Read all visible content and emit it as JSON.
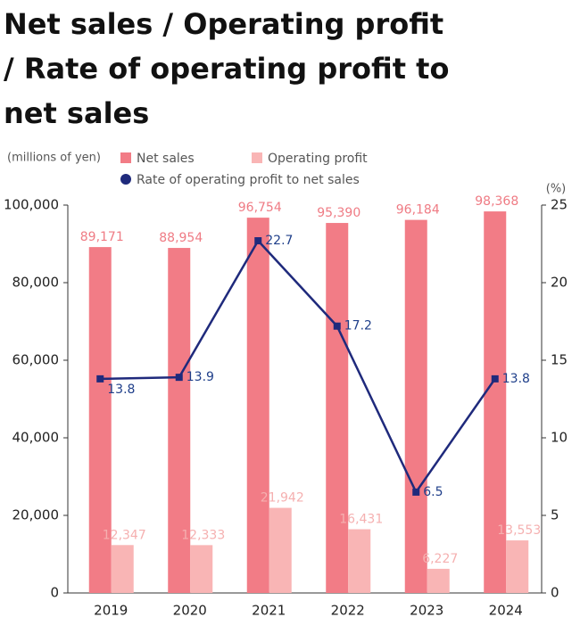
{
  "chart_data": {
    "type": "combo",
    "title": [
      "Net sales / Operating profit",
      "/ Rate of operating profit to",
      "net sales"
    ],
    "y_label": "(millions of yen)",
    "y2_label": "(%)",
    "categories": [
      "2019",
      "2020",
      "2021",
      "2022",
      "2023",
      "2024"
    ],
    "series": [
      {
        "name": "Net sales",
        "type": "bar",
        "color": "#f27c86",
        "label_color": "#ef7b84",
        "values": [
          89171,
          88954,
          96754,
          95390,
          96184,
          98368
        ],
        "value_labels": [
          "89,171",
          "88,954",
          "96,754",
          "95,390",
          "96,184",
          "98,368"
        ]
      },
      {
        "name": "Operating profit",
        "type": "bar",
        "color": "#f9b5b5",
        "label_color": "#f5b0b0",
        "values": [
          12347,
          12333,
          21942,
          16431,
          6227,
          13553
        ],
        "value_labels": [
          "12,347",
          "12,333",
          "21,942",
          "16,431",
          "6,227",
          "13,553"
        ]
      },
      {
        "name": "Rate of operating profit to net sales",
        "type": "line",
        "axis": "y2",
        "color": "#1f2a7c",
        "label_color": "#1f3f8a",
        "values": [
          13.8,
          13.9,
          22.7,
          17.2,
          6.5,
          13.8
        ]
      }
    ],
    "ylim": [
      0,
      100000
    ],
    "yticks": [
      {
        "value": 0,
        "label": "0"
      },
      {
        "value": 20000,
        "label": "20,000"
      },
      {
        "value": 40000,
        "label": "40,000"
      },
      {
        "value": 60000,
        "label": "60,000"
      },
      {
        "value": 80000,
        "label": "80,000"
      },
      {
        "value": 100000,
        "label": "100,000"
      }
    ],
    "y2lim": [
      0,
      25
    ],
    "y2ticks": [
      0,
      5,
      10,
      15,
      20,
      25
    ]
  }
}
